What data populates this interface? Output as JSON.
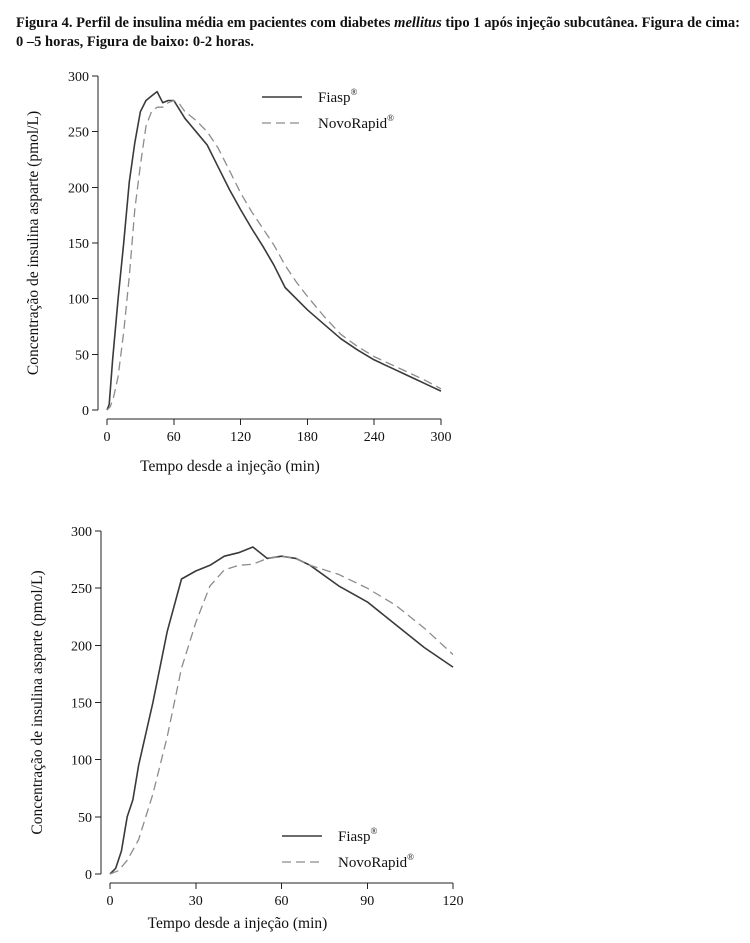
{
  "caption": {
    "part1": "Figura 4. Perfil de insulina média em pacientes com diabetes ",
    "italic": "mellitus",
    "part2": " tipo 1 após injeção subcutânea. Figura de cima: 0 –5 horas, Figura de baixo: 0-2 horas."
  },
  "chart_data": [
    {
      "type": "line",
      "xlabel": "Tempo desde a injeção (min)",
      "ylabel": "Concentração de insulina asparte (pmol/L)",
      "xlim": [
        0,
        300
      ],
      "ylim": [
        0,
        300
      ],
      "xticks": [
        0,
        60,
        120,
        180,
        240,
        300
      ],
      "yticks": [
        0,
        50,
        100,
        150,
        200,
        250,
        300
      ],
      "grid": false,
      "legend_position": "top-right",
      "series": [
        {
          "name": "Fiasp",
          "name_sup": "®",
          "style": "solid",
          "color": "#3a3a3a",
          "x": [
            0,
            2,
            5,
            10,
            15,
            20,
            25,
            30,
            35,
            40,
            45,
            50,
            55,
            60,
            65,
            70,
            80,
            90,
            100,
            110,
            120,
            130,
            140,
            150,
            160,
            170,
            180,
            195,
            210,
            225,
            240,
            255,
            270,
            285,
            300
          ],
          "y": [
            0,
            5,
            45,
            100,
            150,
            205,
            240,
            268,
            278,
            282,
            286,
            276,
            278,
            278,
            270,
            262,
            250,
            238,
            218,
            198,
            180,
            163,
            147,
            130,
            110,
            100,
            90,
            77,
            64,
            54,
            45,
            38,
            31,
            24,
            17
          ]
        },
        {
          "name": "NovoRapid",
          "name_sup": "®",
          "style": "dashed",
          "color": "#8c8c8c",
          "x": [
            0,
            3,
            6,
            10,
            15,
            20,
            25,
            30,
            35,
            40,
            45,
            50,
            55,
            60,
            65,
            70,
            80,
            90,
            100,
            110,
            120,
            130,
            140,
            150,
            160,
            170,
            180,
            195,
            210,
            225,
            240,
            255,
            270,
            285,
            300
          ],
          "y": [
            0,
            3,
            12,
            30,
            70,
            120,
            180,
            220,
            255,
            268,
            272,
            272,
            276,
            278,
            275,
            268,
            260,
            250,
            235,
            215,
            195,
            178,
            163,
            148,
            130,
            115,
            102,
            84,
            68,
            57,
            48,
            41,
            34,
            27,
            19
          ]
        }
      ]
    },
    {
      "type": "line",
      "xlabel": "Tempo desde a injeção (min)",
      "ylabel": "Concentração de insulina asparte (pmol/L)",
      "xlim": [
        0,
        120
      ],
      "ylim": [
        0,
        300
      ],
      "xticks": [
        0,
        30,
        60,
        90,
        120
      ],
      "yticks": [
        0,
        50,
        100,
        150,
        200,
        250,
        300
      ],
      "grid": false,
      "legend_position": "bottom-right",
      "series": [
        {
          "name": "Fiasp",
          "name_sup": "®",
          "style": "solid",
          "color": "#3a3a3a",
          "x": [
            0,
            2,
            4,
            6,
            8,
            10,
            15,
            20,
            25,
            30,
            35,
            40,
            45,
            50,
            55,
            60,
            65,
            70,
            80,
            90,
            100,
            110,
            120
          ],
          "y": [
            0,
            5,
            20,
            50,
            65,
            95,
            150,
            212,
            258,
            265,
            270,
            278,
            281,
            286,
            276,
            278,
            276,
            270,
            252,
            238,
            218,
            198,
            181
          ]
        },
        {
          "name": "NovoRapid",
          "name_sup": "®",
          "style": "dashed",
          "color": "#8c8c8c",
          "x": [
            0,
            3,
            6,
            10,
            15,
            20,
            25,
            30,
            35,
            40,
            45,
            50,
            55,
            60,
            65,
            70,
            80,
            90,
            100,
            110,
            120
          ],
          "y": [
            0,
            3,
            12,
            30,
            70,
            120,
            180,
            220,
            252,
            266,
            270,
            271,
            276,
            278,
            276,
            270,
            262,
            250,
            235,
            215,
            192
          ]
        }
      ]
    }
  ]
}
